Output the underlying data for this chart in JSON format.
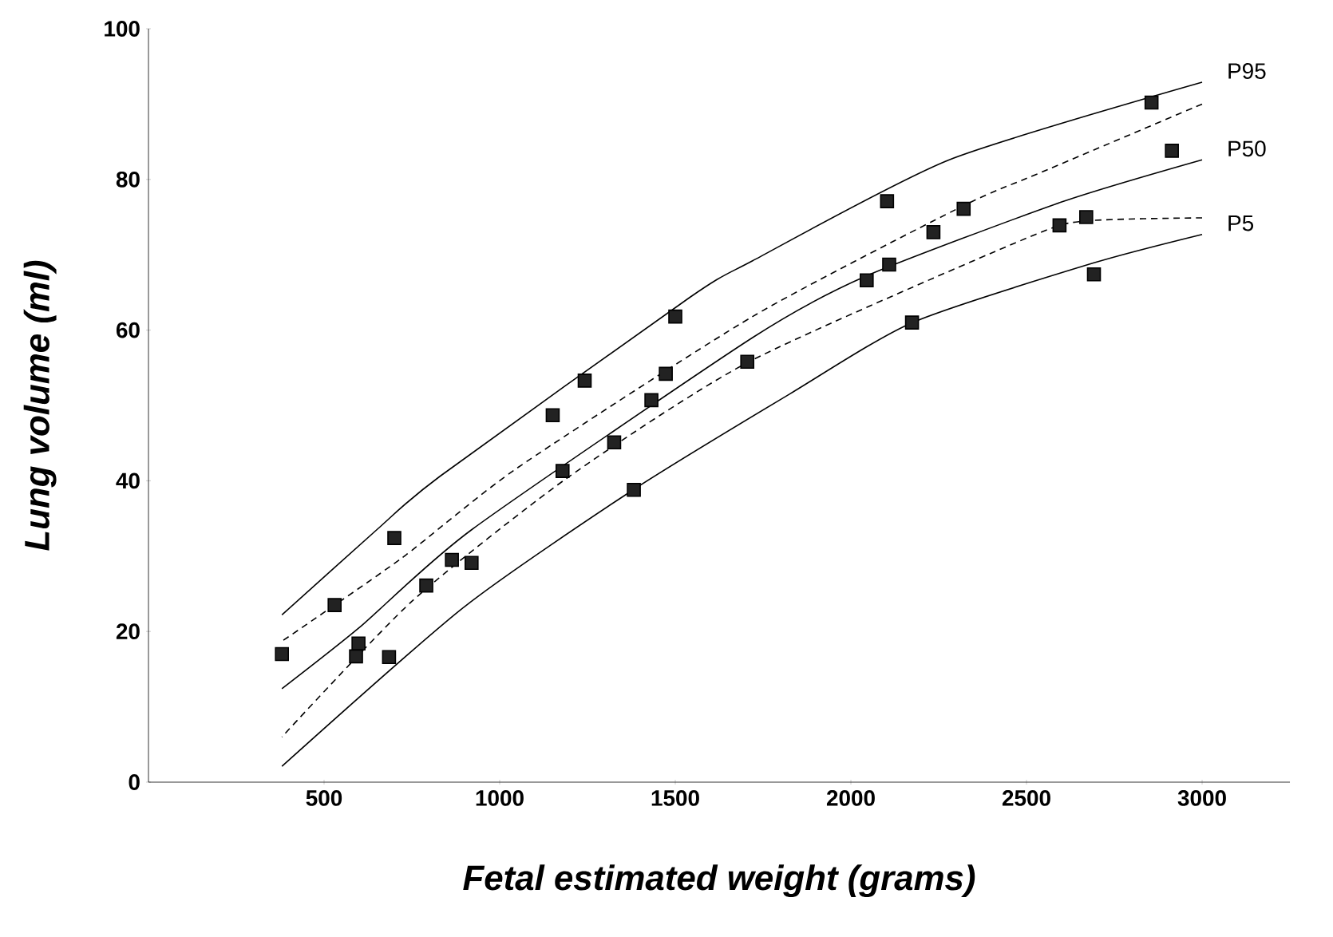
{
  "chart_data": {
    "type": "line",
    "xlabel": "Fetal estimated weight (grams)",
    "ylabel": "Lung volume (ml)",
    "xlim": [
      0,
      3250
    ],
    "ylim": [
      0,
      100
    ],
    "xticks": [
      500,
      1000,
      1500,
      2000,
      2500,
      3000
    ],
    "yticks": [
      0,
      20,
      40,
      60,
      80,
      100
    ],
    "series": [
      {
        "name": "P95",
        "color": "#000000",
        "line_style": "solid",
        "x": [
          380,
          650,
          830,
          1540,
          1720,
          2280,
          3000
        ],
        "values": [
          22.2,
          33.5,
          40.6,
          64.3,
          69.2,
          82.6,
          92.9
        ]
      },
      {
        "color": "#000000",
        "line_style": "dashed",
        "x": [
          380,
          720,
          1050,
          1720,
          2320,
          2540,
          3000
        ],
        "values": [
          18.7,
          29.7,
          41.7,
          61.8,
          76.5,
          80.9,
          90.0
        ]
      },
      {
        "name": "P50",
        "color": "#000000",
        "line_style": "solid",
        "x": [
          380,
          600,
          920,
          1720,
          2040,
          2600,
          3000
        ],
        "values": [
          12.4,
          20.5,
          33.5,
          59.0,
          67.1,
          77.0,
          82.6
        ]
      },
      {
        "color": "#000000",
        "line_style": "dashed",
        "x": [
          380,
          750,
          1190,
          1710,
          2510,
          2675,
          3000
        ],
        "values": [
          6.0,
          24.0,
          40.3,
          55.8,
          72.4,
          74.5,
          74.9
        ]
      },
      {
        "name": "P5",
        "color": "#000000",
        "line_style": "solid",
        "x": [
          380,
          900,
          1380,
          1825,
          2175,
          2690,
          3000
        ],
        "values": [
          2.1,
          23.3,
          38.8,
          51.5,
          61.0,
          68.9,
          72.7
        ]
      },
      {
        "type": "scatter",
        "color": "#222222",
        "marker": "square",
        "x": [
          380,
          530,
          598,
          591,
          685,
          700,
          791,
          864,
          920,
          1179,
          1382,
          1151,
          1242,
          1326,
          1432,
          1473,
          1500,
          1705,
          2045,
          2103,
          2109,
          2174,
          2235,
          2321,
          2594,
          2670,
          2692,
          2856,
          2914
        ],
        "values": [
          17,
          23.5,
          18.4,
          16.7,
          16.6,
          32.4,
          26.1,
          29.5,
          29.1,
          41.3,
          38.8,
          48.7,
          53.3,
          45.1,
          50.7,
          54.2,
          61.8,
          55.8,
          66.6,
          77.1,
          68.7,
          61.0,
          73.0,
          76.1,
          73.9,
          75.0,
          67.4,
          90.2,
          83.8
        ]
      }
    ]
  }
}
